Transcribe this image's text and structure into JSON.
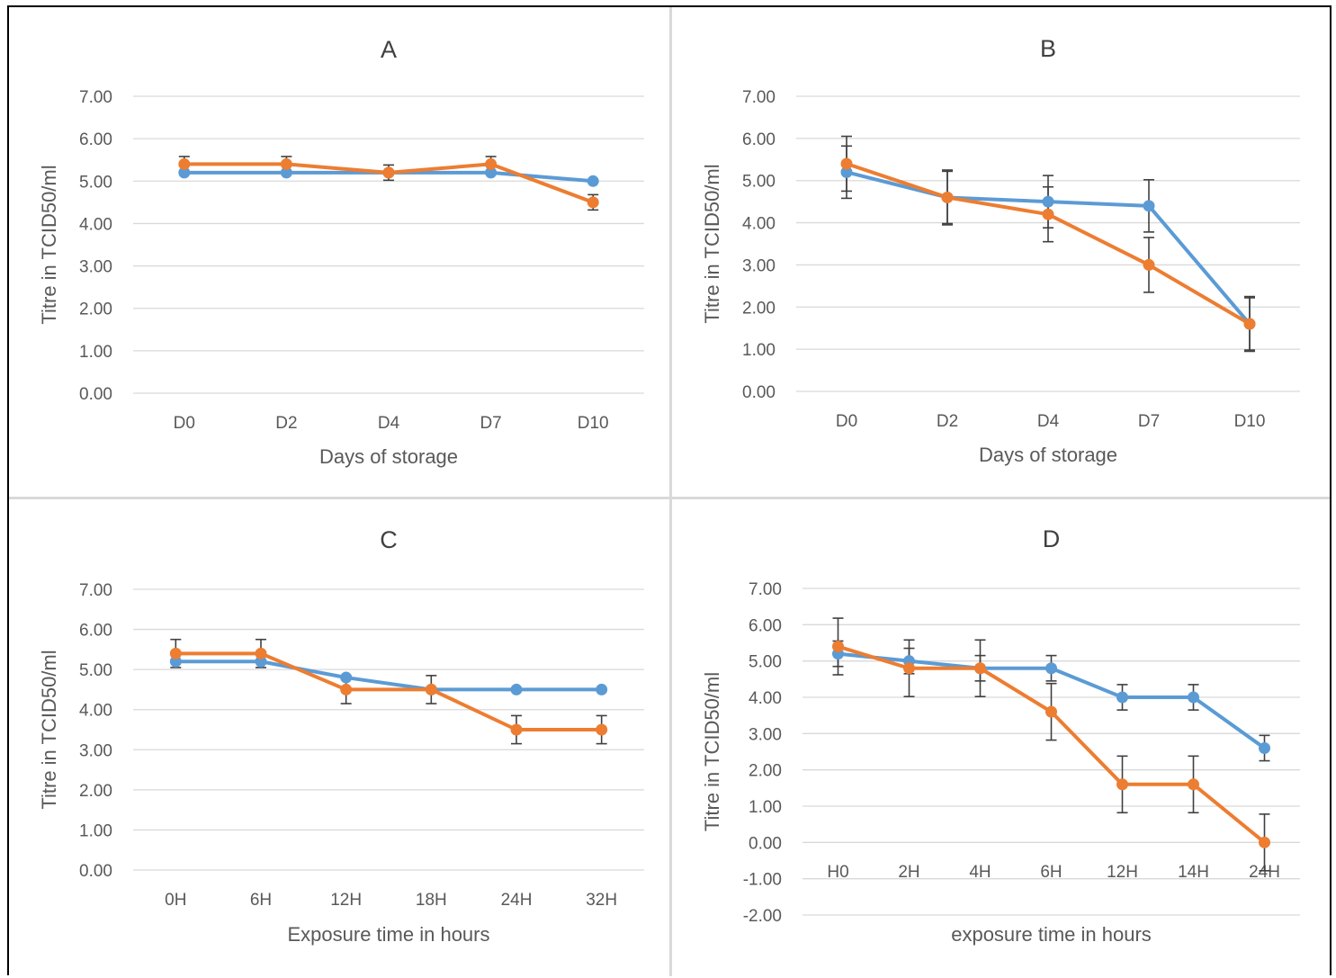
{
  "colors": {
    "series1": "#5b9bd5",
    "series2": "#ed7d31",
    "grid": "#d9d9d9",
    "errbar": "#404040",
    "text": "#595959"
  },
  "chart_data": [
    {
      "id": "A",
      "type": "line",
      "title": "A",
      "xlabel": "Days of storage",
      "ylabel": "Titre in TCID50/ml",
      "categories": [
        "D0",
        "D2",
        "D4",
        "D7",
        "D10"
      ],
      "ylim": [
        0,
        7
      ],
      "yticks": [
        "0.00",
        "1.00",
        "2.00",
        "3.00",
        "4.00",
        "5.00",
        "6.00",
        "7.00"
      ],
      "grid": true,
      "series": [
        {
          "values": [
            5.2,
            5.2,
            5.2,
            5.2,
            5.0
          ],
          "errors": [
            0,
            0,
            0,
            0,
            0
          ]
        },
        {
          "values": [
            5.4,
            5.4,
            5.2,
            5.4,
            4.5
          ],
          "errors": [
            0.18,
            0.18,
            0.18,
            0.18,
            0.18
          ]
        }
      ]
    },
    {
      "id": "B",
      "type": "line",
      "title": "B",
      "xlabel": "Days of storage",
      "ylabel": "Titre in TCID50/ml",
      "categories": [
        "D0",
        "D2",
        "D4",
        "D7",
        "D10"
      ],
      "ylim": [
        0,
        7
      ],
      "yticks": [
        "0.00",
        "1.00",
        "2.00",
        "3.00",
        "4.00",
        "5.00",
        "6.00",
        "7.00"
      ],
      "grid": true,
      "series": [
        {
          "values": [
            5.2,
            4.6,
            4.5,
            4.4,
            1.6
          ],
          "errors": [
            0.62,
            0.62,
            0.62,
            0.62,
            0.62
          ]
        },
        {
          "values": [
            5.4,
            4.6,
            4.2,
            3.0,
            1.6
          ],
          "errors": [
            0.65,
            0.65,
            0.65,
            0.65,
            0.65
          ]
        }
      ]
    },
    {
      "id": "C",
      "type": "line",
      "title": "C",
      "xlabel": "Exposure time in hours",
      "ylabel": "Titre in TCID50/ml",
      "categories": [
        "0H",
        "6H",
        "12H",
        "18H",
        "24H",
        "32H"
      ],
      "ylim": [
        0,
        7
      ],
      "yticks": [
        "0.00",
        "1.00",
        "2.00",
        "3.00",
        "4.00",
        "5.00",
        "6.00",
        "7.00"
      ],
      "grid": true,
      "series": [
        {
          "values": [
            5.2,
            5.2,
            4.8,
            4.5,
            4.5,
            4.5
          ],
          "errors": [
            0,
            0,
            0,
            0,
            0,
            0
          ]
        },
        {
          "values": [
            5.4,
            5.4,
            4.5,
            4.5,
            3.5,
            3.5
          ],
          "errors": [
            0.35,
            0.35,
            0.35,
            0.35,
            0.35,
            0.35
          ]
        }
      ]
    },
    {
      "id": "D",
      "type": "line",
      "title": "D",
      "xlabel": "exposure time in hours",
      "ylabel": "Titre in TCID50/ml",
      "categories": [
        "H0",
        "2H",
        "4H",
        "6H",
        "12H",
        "14H",
        "24H"
      ],
      "ylim": [
        -2,
        7
      ],
      "yticks": [
        "-2.00",
        "-1.00",
        "0.00",
        "1.00",
        "2.00",
        "3.00",
        "4.00",
        "5.00",
        "6.00",
        "7.00"
      ],
      "grid": true,
      "series": [
        {
          "values": [
            5.2,
            5.0,
            4.8,
            4.8,
            4.0,
            4.0,
            2.6
          ],
          "errors": [
            0.35,
            0.35,
            0.35,
            0.35,
            0.35,
            0.35,
            0.35
          ]
        },
        {
          "values": [
            5.4,
            4.8,
            4.8,
            3.6,
            1.6,
            1.6,
            0.0
          ],
          "errors": [
            0.78,
            0.78,
            0.78,
            0.78,
            0.78,
            0.78,
            0.78
          ]
        }
      ]
    }
  ]
}
